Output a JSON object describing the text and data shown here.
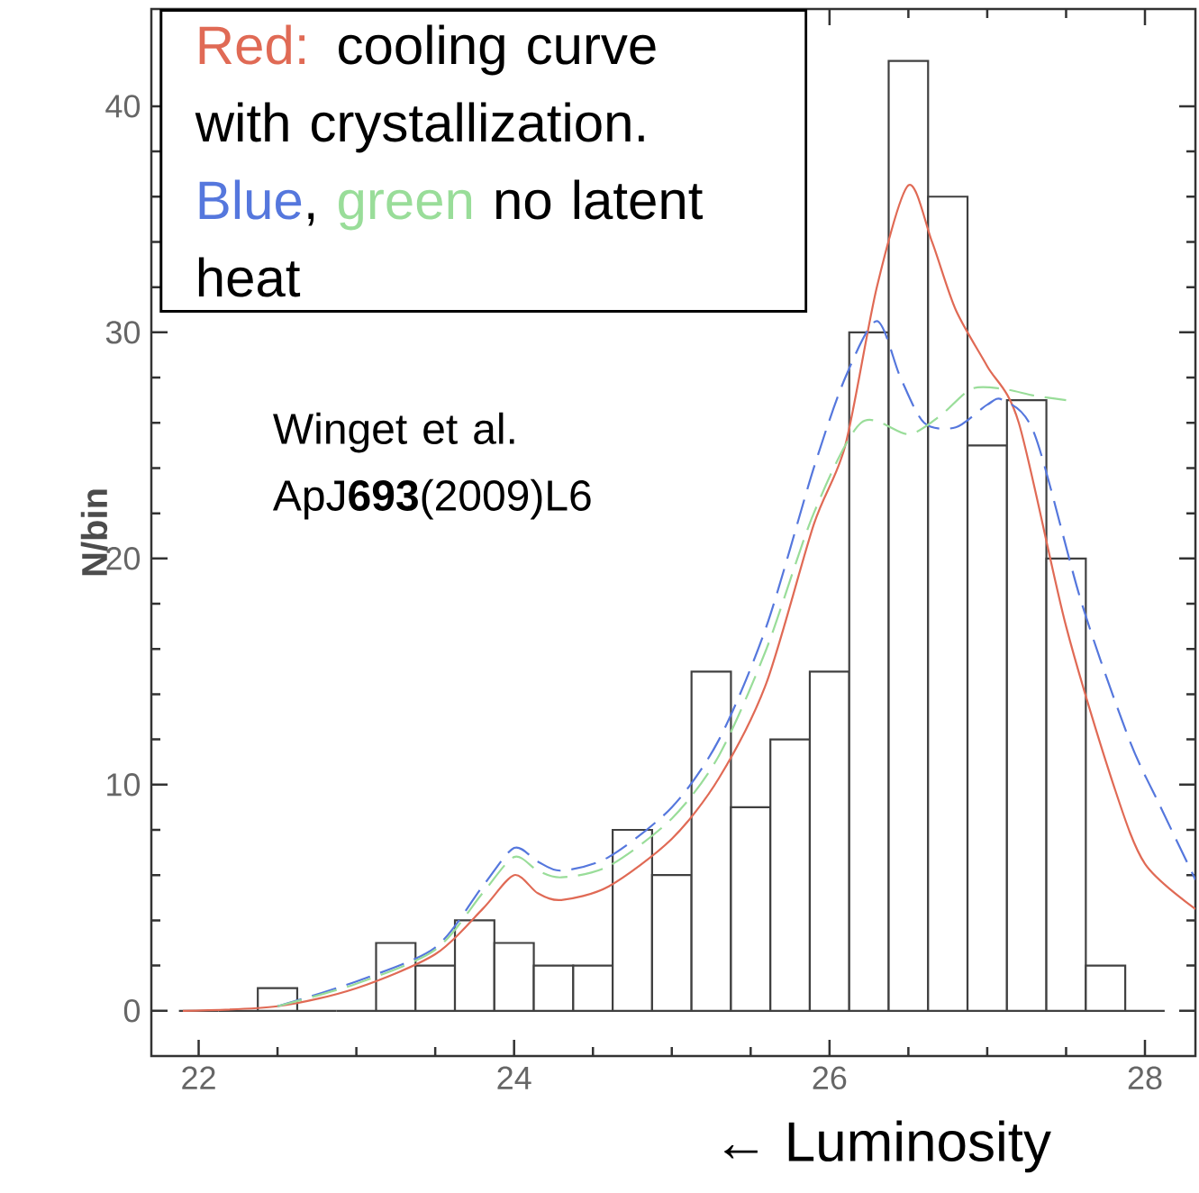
{
  "chart_data": {
    "type": "histogram",
    "xlabel": "← Luminosity",
    "ylabel": "N/bin",
    "bins": [
      21.875,
      22.125,
      22.375,
      22.625,
      22.875,
      23.125,
      23.375,
      23.625,
      23.875,
      24.125,
      24.375,
      24.625,
      24.875,
      25.125,
      25.375,
      25.625,
      25.875,
      26.125,
      26.375,
      26.625,
      26.875,
      27.125,
      27.375,
      27.625,
      27.875,
      28.125
    ],
    "values": [
      0,
      0,
      1,
      0,
      0,
      3,
      2,
      4,
      3,
      2,
      2,
      8,
      6,
      15,
      9,
      12,
      15,
      30,
      42,
      36,
      25,
      27,
      20,
      2,
      0
    ],
    "color": "#404040",
    "series": [
      {
        "name": "Red:",
        "type": "line",
        "color": "#e06a55",
        "line_style": "solid",
        "x": [
          21.9,
          22.5,
          23.0,
          23.5,
          23.8,
          24.0,
          24.15,
          24.3,
          24.6,
          25.0,
          25.3,
          25.6,
          25.9,
          26.1,
          26.3,
          26.5,
          26.65,
          26.8,
          27.0,
          27.2,
          27.5,
          27.8,
          28.0,
          28.32
        ],
        "values": [
          0,
          0.2,
          1,
          2.5,
          4.5,
          6,
          5.2,
          4.9,
          5.5,
          7.6,
          10.3,
          14.5,
          21.5,
          25,
          32,
          36.5,
          34,
          31,
          28.5,
          26,
          17,
          10,
          6.5,
          4.5
        ]
      },
      {
        "name": "Blue",
        "type": "line",
        "color": "#5577dd",
        "line_style": "dashed",
        "x": [
          22.5,
          23.0,
          23.5,
          23.8,
          24.0,
          24.15,
          24.3,
          24.6,
          25.0,
          25.3,
          25.6,
          25.9,
          26.1,
          26.3,
          26.45,
          26.6,
          26.8,
          27.0,
          27.1,
          27.3,
          27.6,
          27.9,
          28.1,
          28.32
        ],
        "values": [
          0.2,
          1.3,
          2.8,
          5.5,
          7.2,
          6.6,
          6.2,
          6.8,
          9,
          12,
          17,
          24,
          28,
          30.5,
          28,
          26,
          25.8,
          26.8,
          27,
          25.5,
          18,
          12,
          9,
          5.8
        ]
      },
      {
        "name": "green",
        "type": "line",
        "color": "#99dd99",
        "line_style": "dashed",
        "x": [
          22.5,
          23.0,
          23.5,
          23.8,
          24.0,
          24.15,
          24.3,
          24.6,
          25.0,
          25.3,
          25.6,
          25.9,
          26.2,
          26.5,
          26.7,
          26.9,
          27.1,
          27.3,
          27.5
        ],
        "values": [
          0.2,
          1.2,
          2.7,
          5.2,
          6.8,
          6.2,
          5.9,
          6.4,
          8.5,
          11.3,
          16,
          22,
          26,
          25.5,
          26.3,
          27.5,
          27.5,
          27.2,
          27
        ]
      }
    ],
    "xlim": [
      21.7,
      28.32
    ],
    "ylim": [
      -2,
      44.3
    ],
    "xticks": [
      22,
      24,
      26,
      28
    ],
    "yticks": [
      0,
      10,
      20,
      30,
      40
    ],
    "annotations": [
      "cooling curve with crystallization.",
      ",",
      "no latent heat",
      "Winget et al. ApJ**693**(2009)L6"
    ],
    "marker": "none"
  }
}
